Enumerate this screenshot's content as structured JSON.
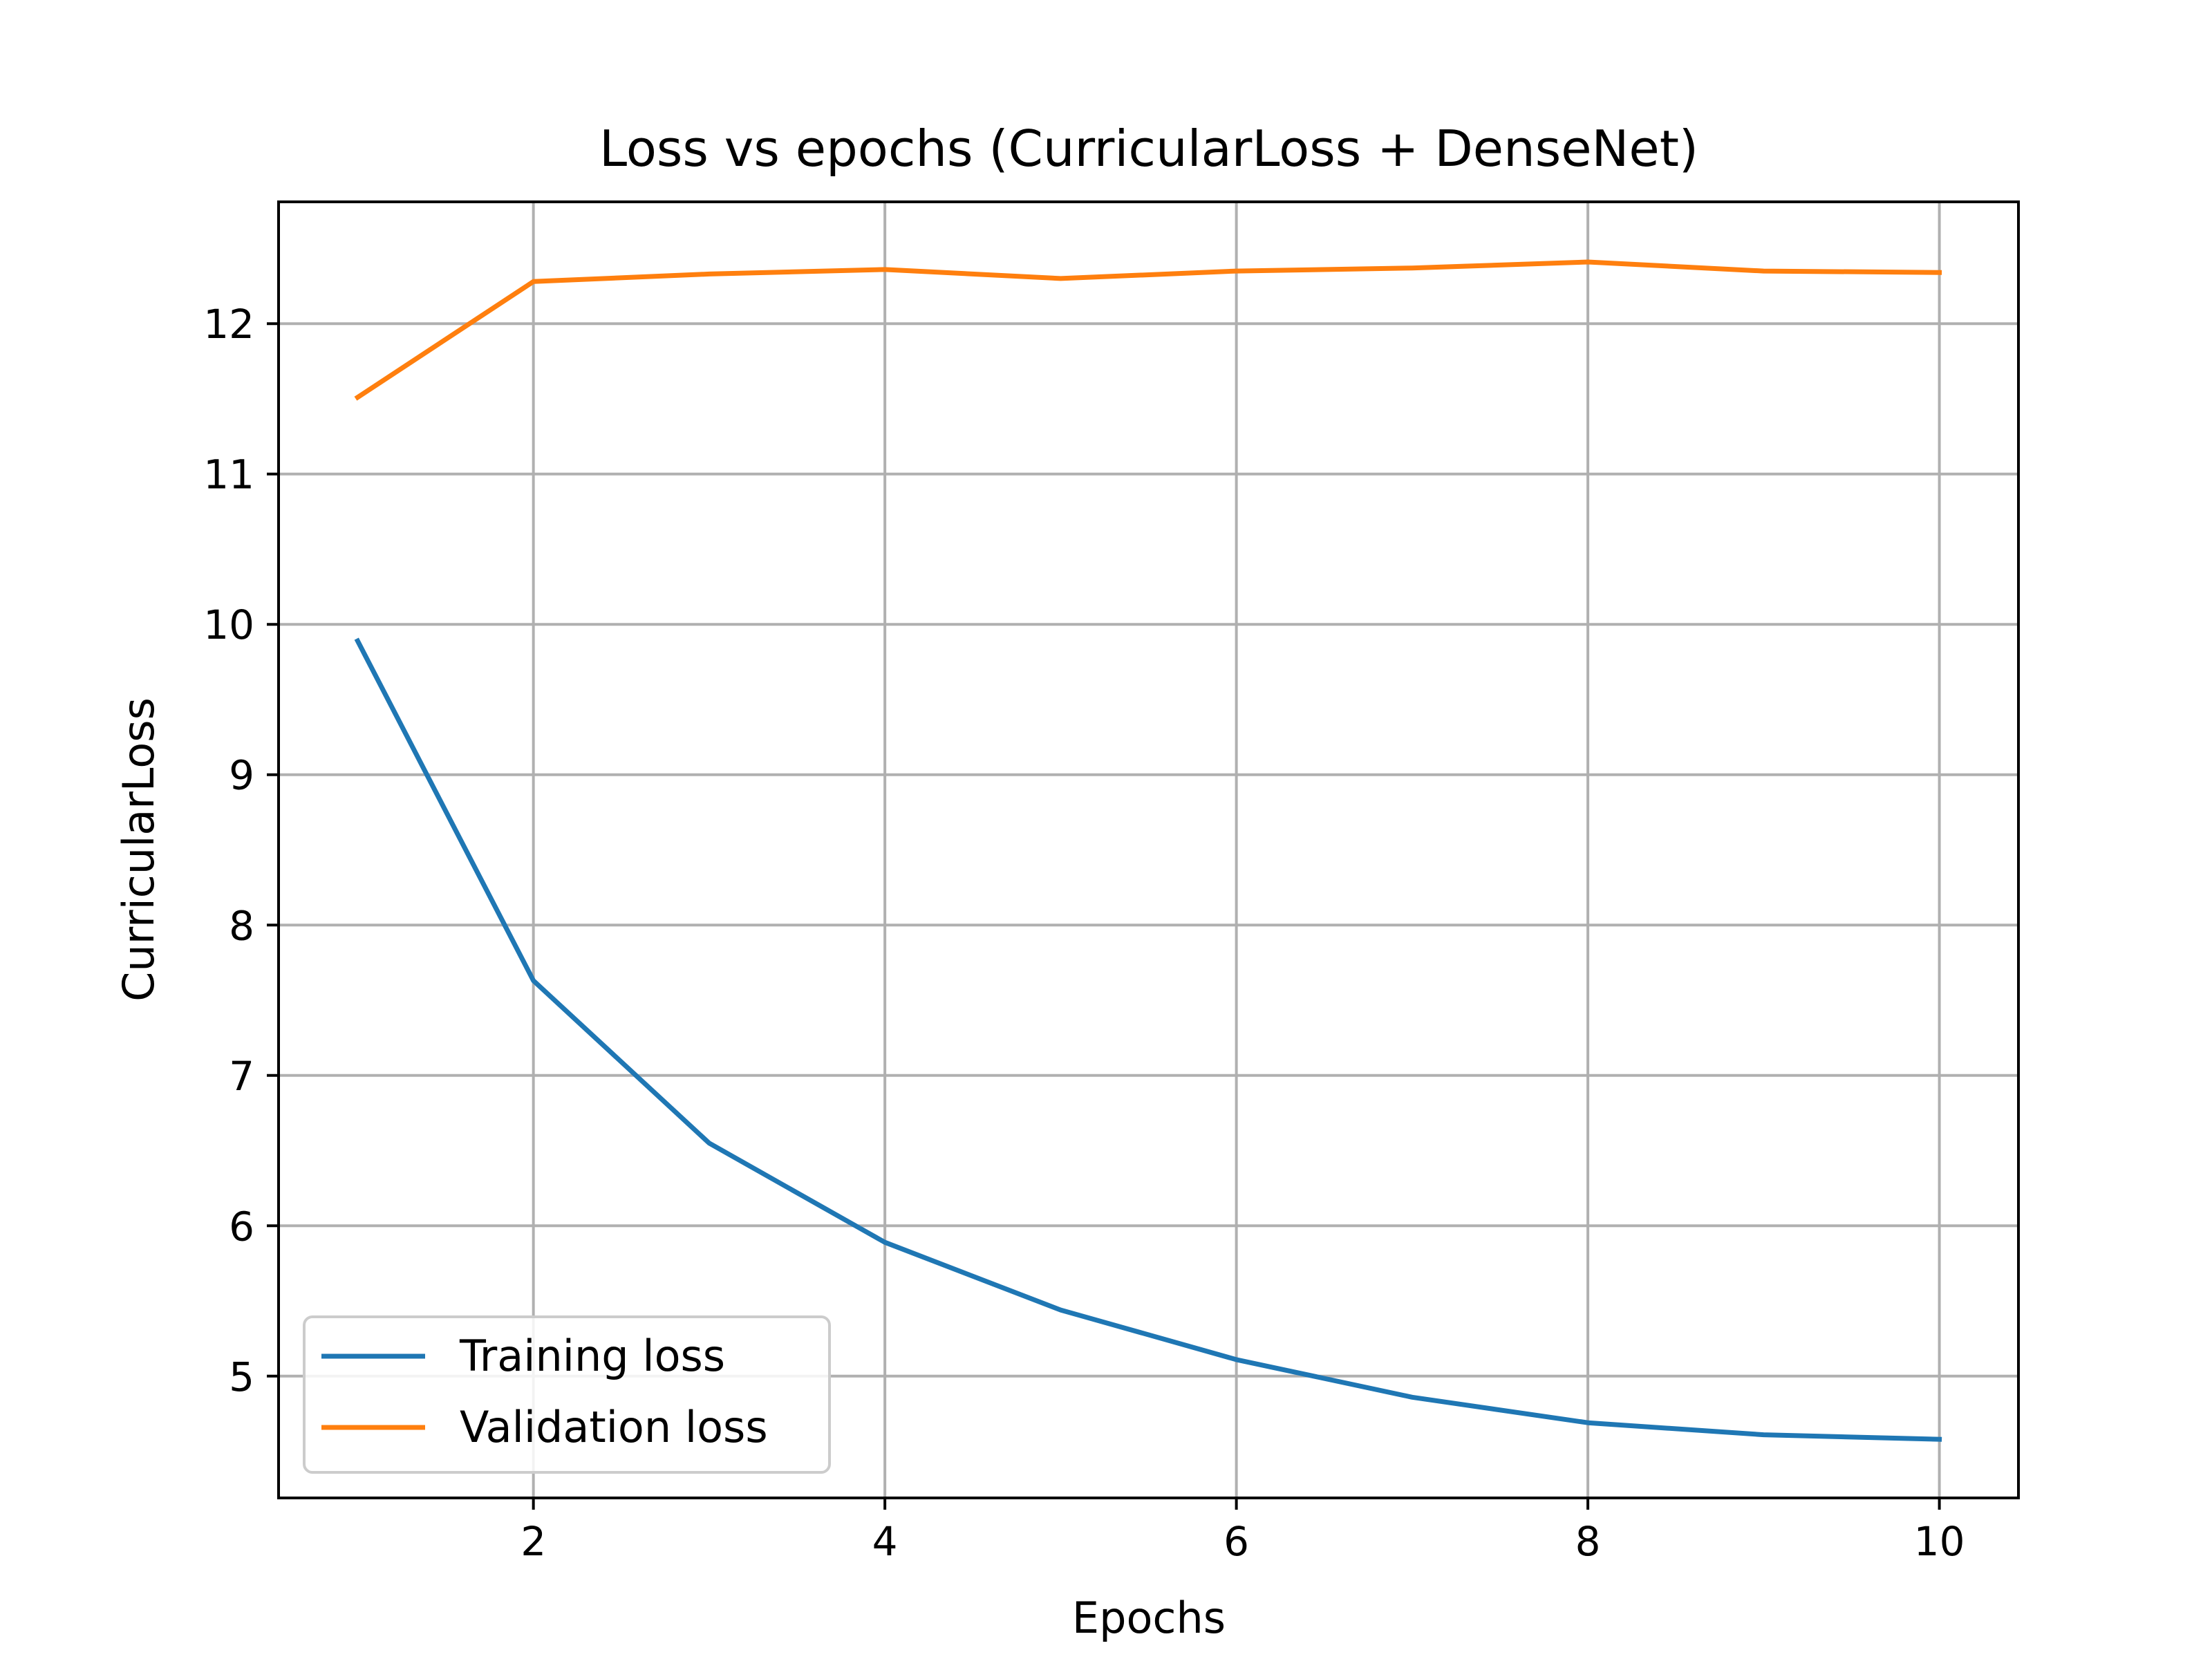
{
  "chart_data": {
    "type": "line",
    "title": "Loss vs epochs (CurricularLoss + DenseNet)",
    "xlabel": "Epochs",
    "ylabel": "CurricularLoss",
    "xlim": [
      0.55,
      10.45
    ],
    "ylim": [
      4.19,
      12.81
    ],
    "xticks": [
      2,
      4,
      6,
      8,
      10
    ],
    "yticks": [
      5,
      6,
      7,
      8,
      9,
      10,
      11,
      12
    ],
    "grid": true,
    "legend_position": "lower-left",
    "x": [
      1,
      2,
      3,
      4,
      5,
      6,
      7,
      8,
      9,
      10
    ],
    "series": [
      {
        "name": "Training loss",
        "color": "#1f77b4",
        "values": [
          9.89,
          7.63,
          6.55,
          5.89,
          5.44,
          5.11,
          4.86,
          4.69,
          4.61,
          4.58
        ]
      },
      {
        "name": "Validation loss",
        "color": "#ff7f0e",
        "values": [
          11.51,
          12.28,
          12.33,
          12.36,
          12.3,
          12.35,
          12.37,
          12.41,
          12.35,
          12.34
        ]
      }
    ]
  }
}
